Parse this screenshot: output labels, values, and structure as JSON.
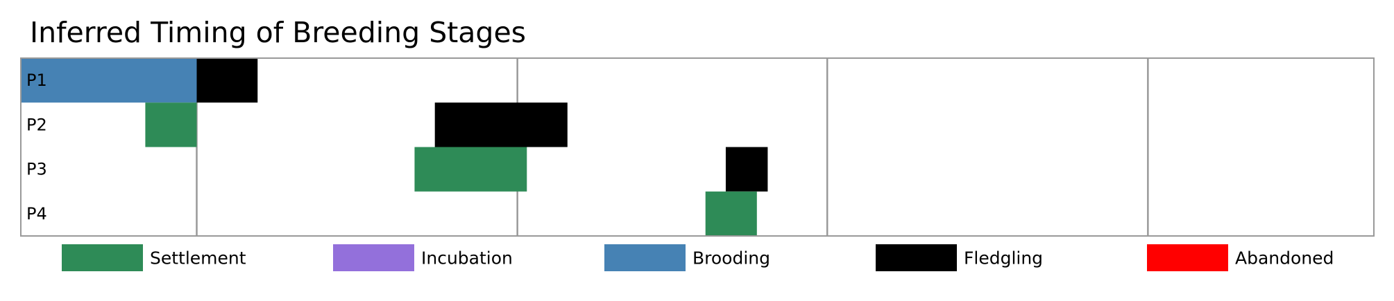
{
  "chart_data": {
    "type": "bar",
    "subtype": "timeline",
    "title": "Inferred Timing of Breeding Stages",
    "xlabel": "",
    "ylabel": "",
    "xlim": [
      0,
      100
    ],
    "rows": [
      "P1",
      "P2",
      "P3",
      "P4"
    ],
    "stage_colors": {
      "Settlement": "#2e8b57",
      "Incubation": "#9370db",
      "Brooding": "#4682b4",
      "Fledgling": "#000000",
      "Abandoned": "#ff0000"
    },
    "legend": {
      "placement": "bottom",
      "entries": [
        "Settlement",
        "Incubation",
        "Brooding",
        "Fledgling",
        "Abandoned"
      ]
    },
    "vertical_lines": [
      13.0,
      36.7,
      59.6,
      83.3
    ],
    "segments": [
      {
        "row": "P1",
        "stage": "Brooding",
        "start": 0.0,
        "end": 13.0
      },
      {
        "row": "P1",
        "stage": "Fledgling",
        "start": 13.0,
        "end": 17.5
      },
      {
        "row": "P2",
        "stage": "Settlement",
        "start": 9.2,
        "end": 13.0
      },
      {
        "row": "P2",
        "stage": "Fledgling",
        "start": 30.6,
        "end": 40.4
      },
      {
        "row": "P3",
        "stage": "Settlement",
        "start": 29.1,
        "end": 37.4
      },
      {
        "row": "P3",
        "stage": "Fledgling",
        "start": 52.1,
        "end": 55.2
      },
      {
        "row": "P4",
        "stage": "Settlement",
        "start": 50.6,
        "end": 54.4
      }
    ],
    "grid": false
  }
}
